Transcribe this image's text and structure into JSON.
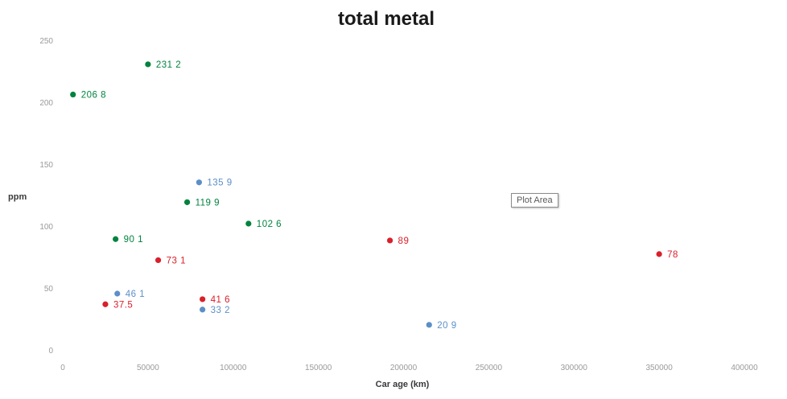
{
  "chart_data": {
    "type": "scatter",
    "title": "total metal",
    "xlabel": "Car age (km)",
    "ylabel": "ppm",
    "xlim": [
      0,
      400000
    ],
    "ylim": [
      0,
      250
    ],
    "x_ticks": [
      "0",
      "50000",
      "100000",
      "150000",
      "200000",
      "250000",
      "300000",
      "350000",
      "400000"
    ],
    "y_ticks": [
      "0",
      "50",
      "100",
      "150",
      "200",
      "250"
    ],
    "x_tick_values": [
      0,
      50000,
      100000,
      150000,
      200000,
      250000,
      300000,
      350000,
      400000
    ],
    "y_tick_values": [
      0,
      50,
      100,
      150,
      200,
      250
    ],
    "grid": false,
    "legend": "none",
    "series": [
      {
        "color": "#00833e",
        "points": [
          {
            "x": 6000,
            "y": 206.8,
            "label": "206 8"
          },
          {
            "x": 50000,
            "y": 231.2,
            "label": "231 2"
          },
          {
            "x": 73000,
            "y": 119.9,
            "label": "119 9"
          },
          {
            "x": 109000,
            "y": 102.6,
            "label": "102 6"
          },
          {
            "x": 31000,
            "y": 90.1,
            "label": "90 1"
          }
        ]
      },
      {
        "color": "#5b8fc9",
        "points": [
          {
            "x": 80000,
            "y": 135.9,
            "label": "135 9"
          },
          {
            "x": 32000,
            "y": 46.1,
            "label": "46 1"
          },
          {
            "x": 82000,
            "y": 33.2,
            "label": "33 2"
          },
          {
            "x": 215000,
            "y": 20.9,
            "label": "20 9"
          }
        ]
      },
      {
        "color": "#d9202b",
        "points": [
          {
            "x": 56000,
            "y": 73.1,
            "label": "73 1"
          },
          {
            "x": 25000,
            "y": 37.5,
            "label": "37.5"
          },
          {
            "x": 82000,
            "y": 41.6,
            "label": "41 6"
          },
          {
            "x": 192000,
            "y": 89,
            "label": "89"
          },
          {
            "x": 350000,
            "y": 78,
            "label": "78"
          }
        ]
      }
    ]
  },
  "tooltip": {
    "text": "Plot Area"
  }
}
